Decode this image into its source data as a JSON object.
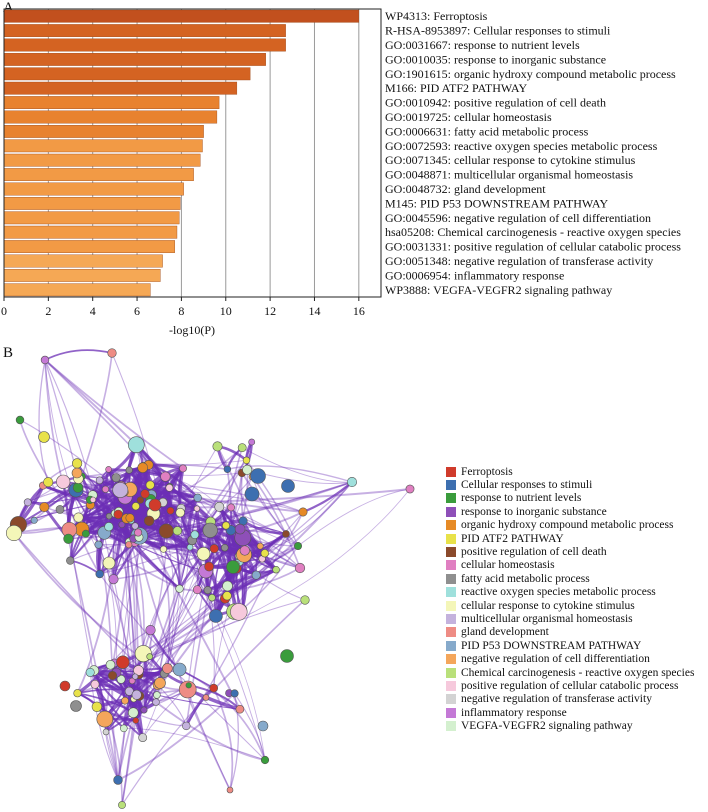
{
  "panels": {
    "a": "A",
    "b": "B"
  },
  "chart_data": [
    {
      "type": "bar",
      "orientation": "horizontal",
      "xlabel": "-log10(P)",
      "xlim": [
        0,
        17
      ],
      "xticks": [
        0,
        2,
        4,
        6,
        8,
        10,
        12,
        14,
        16
      ],
      "grid": "vertical",
      "categories": [
        "WP4313: Ferroptosis",
        "R-HSA-8953897: Cellular responses to stimuli",
        "GO:0031667: response to nutrient levels",
        "GO:0010035: response to inorganic substance",
        "GO:1901615: organic hydroxy compound metabolic process",
        "M166: PID ATF2 PATHWAY",
        "GO:0010942: positive regulation of cell death",
        "GO:0019725: cellular homeostasis",
        "GO:0006631: fatty acid metabolic process",
        "GO:0072593: reactive oxygen species metabolic process",
        "GO:0071345: cellular response to cytokine stimulus",
        "GO:0048871: multicellular organismal homeostasis",
        "GO:0048732: gland development",
        "M145: PID P53 DOWNSTREAM PATHWAY",
        "GO:0045596: negative regulation of cell differentiation",
        "hsa05208: Chemical carcinogenesis - reactive oxygen species",
        "GO:0031331: positive regulation of cellular catabolic process",
        "GO:0051348: negative regulation of transferase activity",
        "GO:0006954: inflammatory response",
        "WP3888: VEGFA-VEGFR2 signaling pathway"
      ],
      "values": [
        16.0,
        12.7,
        12.7,
        11.8,
        11.1,
        10.5,
        9.7,
        9.6,
        9.0,
        8.95,
        8.85,
        8.55,
        8.1,
        7.95,
        7.9,
        7.8,
        7.7,
        7.15,
        7.05,
        6.6
      ],
      "colors": {
        "darkest": "#c2501e",
        "dark": "#d46322",
        "medium": "#e8822f",
        "light": "#f29a45",
        "lightest": "#f5a855"
      }
    },
    {
      "type": "network",
      "legend_position": "right",
      "edge_color": "#6c2fb5",
      "legend": [
        {
          "label": "Ferroptosis",
          "color": "#d03b2b"
        },
        {
          "label": "Cellular responses to stimuli",
          "color": "#3d6fb0"
        },
        {
          "label": "response to nutrient levels",
          "color": "#3a9c3c"
        },
        {
          "label": "response to inorganic substance",
          "color": "#8e4fb8"
        },
        {
          "label": "organic hydroxy compound metabolic process",
          "color": "#e68a26"
        },
        {
          "label": "PID ATF2 PATHWAY",
          "color": "#e8e24a"
        },
        {
          "label": "positive regulation of cell death",
          "color": "#8b4a2b"
        },
        {
          "label": "cellular homeostasis",
          "color": "#e07fc1"
        },
        {
          "label": "fatty acid metabolic process",
          "color": "#8f8f8f"
        },
        {
          "label": "reactive oxygen species metabolic process",
          "color": "#9fe0dc"
        },
        {
          "label": "cellular response to cytokine stimulus",
          "color": "#f4f6b8"
        },
        {
          "label": "multicellular organismal homeostasis",
          "color": "#c4b2dd"
        },
        {
          "label": "gland development",
          "color": "#ee8c84"
        },
        {
          "label": "PID P53 DOWNSTREAM PATHWAY",
          "color": "#86aacb"
        },
        {
          "label": "negative regulation of cell differentiation",
          "color": "#f4a65b"
        },
        {
          "label": "Chemical carcinogenesis - reactive oxygen species",
          "color": "#b9e07a"
        },
        {
          "label": "positive regulation of cellular catabolic process",
          "color": "#f6c9dc"
        },
        {
          "label": "negative regulation of transferase activity",
          "color": "#d3d3d3"
        },
        {
          "label": "inflammatory response",
          "color": "#c479d6"
        },
        {
          "label": "VEGFA-VEGFR2 signaling pathway",
          "color": "#d4f0cf"
        }
      ]
    }
  ]
}
